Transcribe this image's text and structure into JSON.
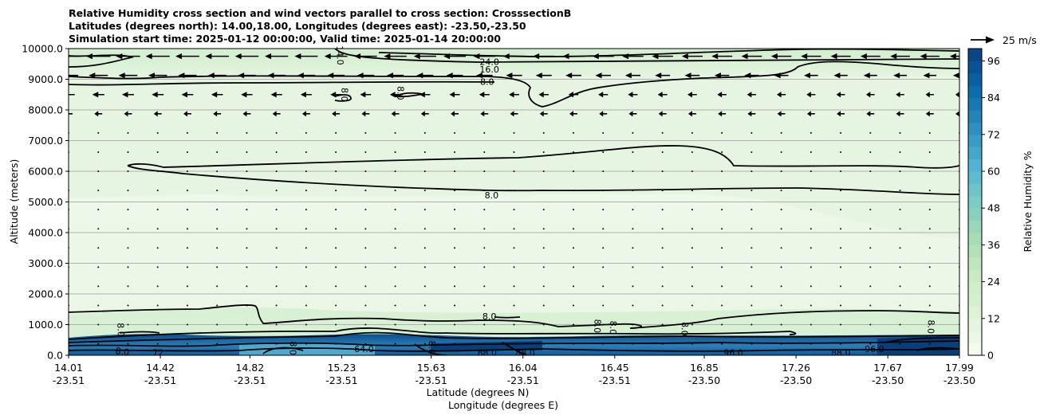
{
  "chart_data": {
    "type": "contourf",
    "title_lines": [
      "Relative Humidity cross section and wind vectors parallel to cross section: CrosssectionB",
      "Latitudes (degrees north): 14.00,18.00, Longitudes (degrees east): -23.50,-23.50",
      "Simulation start time: 2025-01-12 00:00:00, Valid time: 2025-01-14 20:00:00"
    ],
    "xlabel": "Latitude (degrees N)",
    "xlabel2": "Longitude (degrees E)",
    "ylabel": "Altitude (meters)",
    "xlim": [
      14.01,
      17.99
    ],
    "ylim": [
      0,
      10000
    ],
    "grid": "horizontal",
    "x_ticks": [
      {
        "lat": "14.01",
        "lon": "-23.51",
        "value": 14.01
      },
      {
        "lat": "14.42",
        "lon": "-23.51",
        "value": 14.42
      },
      {
        "lat": "14.82",
        "lon": "-23.51",
        "value": 14.82
      },
      {
        "lat": "15.23",
        "lon": "-23.51",
        "value": 15.23
      },
      {
        "lat": "15.63",
        "lon": "-23.51",
        "value": 15.63
      },
      {
        "lat": "16.04",
        "lon": "-23.51",
        "value": 16.04
      },
      {
        "lat": "16.45",
        "lon": "-23.51",
        "value": 16.45
      },
      {
        "lat": "16.85",
        "lon": "-23.50",
        "value": 16.85
      },
      {
        "lat": "17.26",
        "lon": "-23.50",
        "value": 17.26
      },
      {
        "lat": "17.67",
        "lon": "-23.50",
        "value": 17.67
      },
      {
        "lat": "17.99",
        "lon": "-23.50",
        "value": 17.99
      }
    ],
    "y_ticks": [
      {
        "label": "0.0",
        "value": 0
      },
      {
        "label": "1000.0",
        "value": 1000
      },
      {
        "label": "2000.0",
        "value": 2000
      },
      {
        "label": "3000.0",
        "value": 3000
      },
      {
        "label": "4000.0",
        "value": 4000
      },
      {
        "label": "5000.0",
        "value": 5000
      },
      {
        "label": "6000.0",
        "value": 6000
      },
      {
        "label": "7000.0",
        "value": 7000
      },
      {
        "label": "8000.0",
        "value": 8000
      },
      {
        "label": "9000.0",
        "value": 9000
      },
      {
        "label": "10000.0",
        "value": 10000
      }
    ],
    "colorbar": {
      "label": "Relative Humidity %",
      "range": [
        0,
        100
      ],
      "step": 4,
      "ticks": [
        "0",
        "12",
        "24",
        "36",
        "48",
        "60",
        "72",
        "84",
        "96"
      ],
      "tick_values": [
        0,
        12,
        24,
        36,
        48,
        60,
        72,
        84,
        96
      ],
      "colormap": "GnBu"
    },
    "quiver_key": {
      "label": "25 m/s",
      "speed": 25
    },
    "contour_labels": [
      {
        "text": "24.0",
        "x": 15.89,
        "y": 9550,
        "rot": 0
      },
      {
        "text": "16.0",
        "x": 15.89,
        "y": 9300,
        "rot": 0
      },
      {
        "text": "14.0",
        "x": 15.22,
        "y": 9780,
        "rot": 88
      },
      {
        "text": "8.0",
        "x": 15.88,
        "y": 8900,
        "rot": 0
      },
      {
        "text": "8.0",
        "x": 15.24,
        "y": 8500,
        "rot": 92
      },
      {
        "text": "8.0",
        "x": 15.49,
        "y": 8550,
        "rot": 92
      },
      {
        "text": "8.0",
        "x": 15.9,
        "y": 5200,
        "rot": 0
      },
      {
        "text": "8.0",
        "x": 15.89,
        "y": 1250,
        "rot": 0
      },
      {
        "text": "8.0",
        "x": 16.37,
        "y": 950,
        "rot": 92
      },
      {
        "text": "8.0",
        "x": 16.44,
        "y": 900,
        "rot": 92
      },
      {
        "text": "8.0",
        "x": 16.76,
        "y": 860,
        "rot": 92
      },
      {
        "text": "8.0",
        "x": 14.24,
        "y": 830,
        "rot": 88
      },
      {
        "text": "8.0",
        "x": 17.86,
        "y": 930,
        "rot": 92
      },
      {
        "text": "8.0",
        "x": 14.25,
        "y": 100,
        "rot": 8
      },
      {
        "text": "72",
        "x": 14.41,
        "y": 60,
        "rot": 0
      },
      {
        "text": "64.0",
        "x": 15.33,
        "y": 180,
        "rot": 0
      },
      {
        "text": "88.0",
        "x": 15.88,
        "y": 60,
        "rot": 0
      },
      {
        "text": "88.0",
        "x": 16.05,
        "y": 60,
        "rot": 0
      },
      {
        "text": "96.0",
        "x": 17.61,
        "y": 180,
        "rot": 0
      },
      {
        "text": "88.0",
        "x": 17.46,
        "y": 70,
        "rot": 0
      },
      {
        "text": "8.0",
        "x": 15.63,
        "y": 250,
        "rot": 92
      },
      {
        "text": "8.0",
        "x": 15.01,
        "y": 230,
        "rot": 92
      },
      {
        "text": "96.0",
        "x": 16.98,
        "y": 70,
        "rot": 0
      }
    ]
  }
}
